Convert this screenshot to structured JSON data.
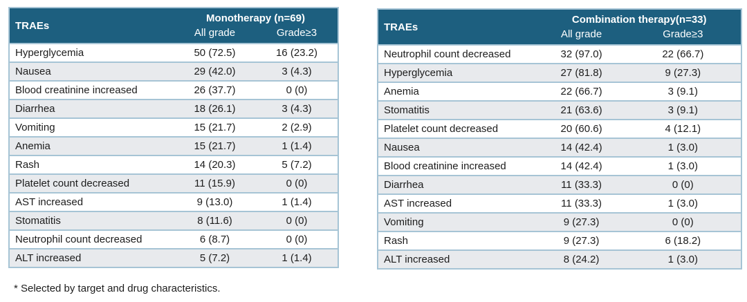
{
  "page": {
    "footnote": "* Selected by target and drug characteristics."
  },
  "colors": {
    "header_bg": "#1d5f7f",
    "header_text": "#ffffff",
    "row_alt_bg": "#e8eaed",
    "border": "#a6c4d5",
    "body_text": "#1c1c1c"
  },
  "tables": [
    {
      "id": "monotherapy",
      "row_header": "TRAEs",
      "group_header": "Monotherapy (n=69)",
      "col_headers": [
        "All grade",
        "Grade≥3"
      ],
      "rows": [
        [
          "Hyperglycemia",
          "50 (72.5)",
          "16 (23.2)"
        ],
        [
          "Nausea",
          "29 (42.0)",
          "3 (4.3)"
        ],
        [
          "Blood creatinine increased",
          "26 (37.7)",
          "0 (0)"
        ],
        [
          "Diarrhea",
          "18 (26.1)",
          "3 (4.3)"
        ],
        [
          "Vomiting",
          "15 (21.7)",
          "2 (2.9)"
        ],
        [
          "Anemia",
          "15 (21.7)",
          "1 (1.4)"
        ],
        [
          "Rash",
          "14 (20.3)",
          "5 (7.2)"
        ],
        [
          "Platelet count decreased",
          "11 (15.9)",
          "0 (0)"
        ],
        [
          "AST increased",
          "9 (13.0)",
          "1 (1.4)"
        ],
        [
          "Stomatitis",
          "8 (11.6)",
          "0 (0)"
        ],
        [
          "Neutrophil count decreased",
          "6 (8.7)",
          "0 (0)"
        ],
        [
          "ALT increased",
          "5 (7.2)",
          "1 (1.4)"
        ]
      ]
    },
    {
      "id": "combination",
      "row_header": "TRAEs",
      "group_header": "Combination therapy(n=33)",
      "col_headers": [
        "All grade",
        "Grade≥3"
      ],
      "rows": [
        [
          "Neutrophil count decreased",
          "32 (97.0)",
          "22 (66.7)"
        ],
        [
          "Hyperglycemia",
          "27 (81.8)",
          "9 (27.3)"
        ],
        [
          "Anemia",
          "22 (66.7)",
          "3 (9.1)"
        ],
        [
          "Stomatitis",
          "21 (63.6)",
          "3 (9.1)"
        ],
        [
          "Platelet count decreased",
          "20 (60.6)",
          "4 (12.1)"
        ],
        [
          "Nausea",
          "14 (42.4)",
          "1 (3.0)"
        ],
        [
          "Blood creatinine increased",
          "14 (42.4)",
          "1 (3.0)"
        ],
        [
          "Diarrhea",
          "11 (33.3)",
          "0 (0)"
        ],
        [
          "AST increased",
          "11 (33.3)",
          "1 (3.0)"
        ],
        [
          "Vomiting",
          "9 (27.3)",
          "0 (0)"
        ],
        [
          "Rash",
          "9 (27.3)",
          "6 (18.2)"
        ],
        [
          "ALT increased",
          "8 (24.2)",
          "1 (3.0)"
        ]
      ]
    }
  ]
}
